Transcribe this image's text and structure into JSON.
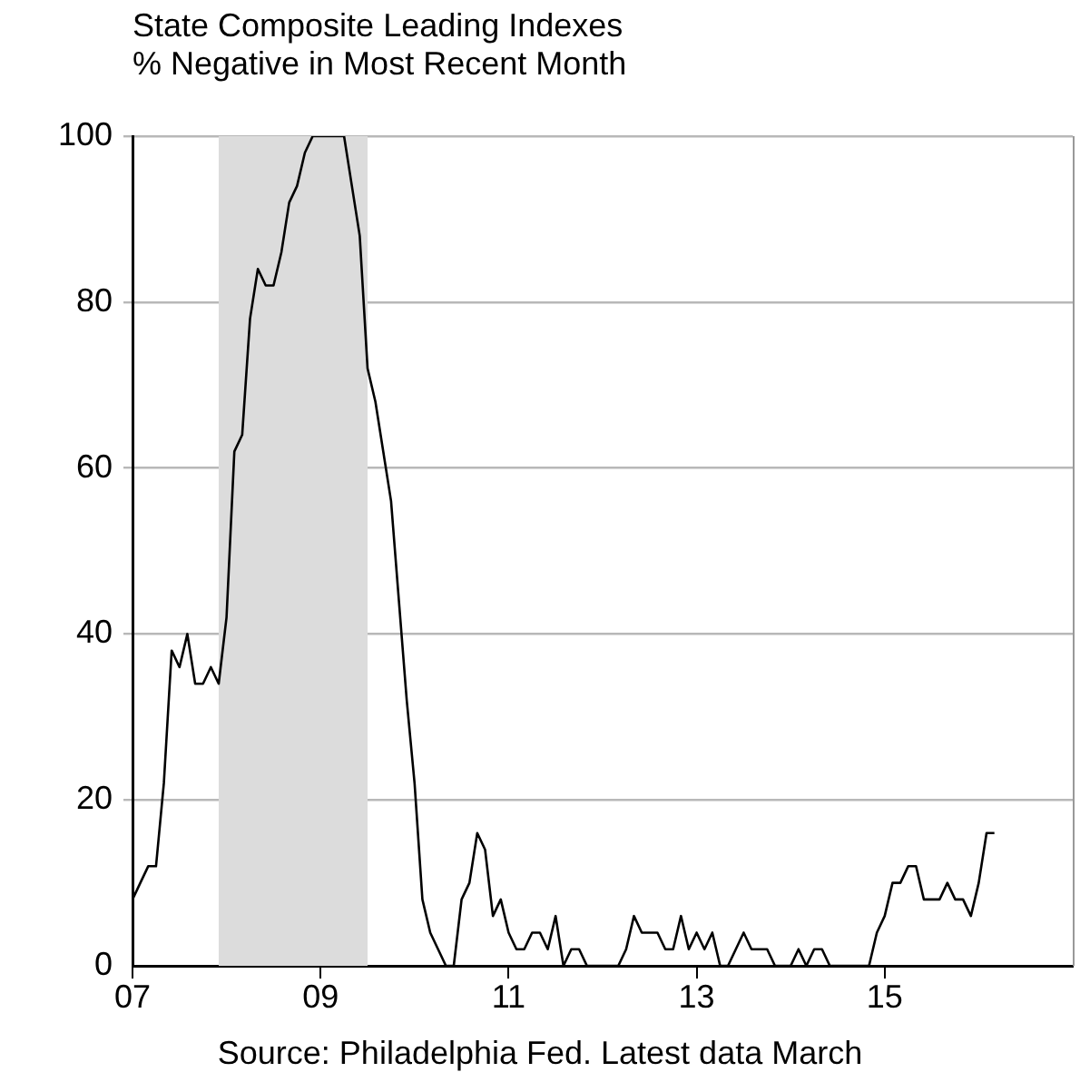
{
  "chart_data": {
    "type": "line",
    "title": "State Composite Leading Indexes",
    "subtitle": "% Negative in Most Recent Month",
    "x": [
      "2007-01",
      "2007-02",
      "2007-03",
      "2007-04",
      "2007-05",
      "2007-06",
      "2007-07",
      "2007-08",
      "2007-09",
      "2007-10",
      "2007-11",
      "2007-12",
      "2008-01",
      "2008-02",
      "2008-03",
      "2008-04",
      "2008-05",
      "2008-06",
      "2008-07",
      "2008-08",
      "2008-09",
      "2008-10",
      "2008-11",
      "2008-12",
      "2009-01",
      "2009-02",
      "2009-03",
      "2009-04",
      "2009-05",
      "2009-06",
      "2009-07",
      "2009-08",
      "2009-09",
      "2009-10",
      "2009-11",
      "2009-12",
      "2010-01",
      "2010-02",
      "2010-03",
      "2010-04",
      "2010-05",
      "2010-06",
      "2010-07",
      "2010-08",
      "2010-09",
      "2010-10",
      "2010-11",
      "2010-12",
      "2011-01",
      "2011-02",
      "2011-03",
      "2011-04",
      "2011-05",
      "2011-06",
      "2011-07",
      "2011-08",
      "2011-09",
      "2011-10",
      "2011-11",
      "2011-12",
      "2012-01",
      "2012-02",
      "2012-03",
      "2012-04",
      "2012-05",
      "2012-06",
      "2012-07",
      "2012-08",
      "2012-09",
      "2012-10",
      "2012-11",
      "2012-12",
      "2013-01",
      "2013-02",
      "2013-03",
      "2013-04",
      "2013-05",
      "2013-06",
      "2013-07",
      "2013-08",
      "2013-09",
      "2013-10",
      "2013-11",
      "2013-12",
      "2014-01",
      "2014-02",
      "2014-03",
      "2014-04",
      "2014-05",
      "2014-06",
      "2014-07",
      "2014-08",
      "2014-09",
      "2014-10",
      "2014-11",
      "2014-12",
      "2015-01",
      "2015-02",
      "2015-03",
      "2015-04",
      "2015-05",
      "2015-06",
      "2015-07",
      "2015-08",
      "2015-09",
      "2015-10",
      "2015-11",
      "2015-12",
      "2016-01",
      "2016-02",
      "2016-03"
    ],
    "values": [
      8,
      10,
      12,
      12,
      22,
      38,
      36,
      40,
      34,
      34,
      36,
      34,
      42,
      62,
      64,
      78,
      84,
      82,
      82,
      86,
      92,
      94,
      98,
      100,
      100,
      100,
      100,
      100,
      94,
      88,
      72,
      68,
      62,
      56,
      44,
      32,
      22,
      8,
      4,
      2,
      0,
      0,
      8,
      10,
      16,
      14,
      6,
      8,
      4,
      2,
      2,
      4,
      4,
      2,
      6,
      0,
      2,
      2,
      0,
      0,
      0,
      0,
      0,
      2,
      6,
      4,
      4,
      4,
      2,
      2,
      6,
      2,
      4,
      2,
      4,
      0,
      0,
      2,
      4,
      2,
      2,
      2,
      0,
      0,
      0,
      2,
      0,
      2,
      2,
      0,
      0,
      0,
      0,
      0,
      0,
      4,
      6,
      10,
      10,
      12,
      12,
      8,
      8,
      8,
      10,
      8,
      8,
      6,
      10,
      16,
      16
    ],
    "color": "#000000",
    "xlim": [
      "2007-01",
      "2017-01"
    ],
    "xticks": [
      {
        "value": "2007",
        "label": "07"
      },
      {
        "value": "2009",
        "label": "09"
      },
      {
        "value": "2011",
        "label": "11"
      },
      {
        "value": "2013",
        "label": "13"
      },
      {
        "value": "2015",
        "label": "15"
      }
    ],
    "ylim": [
      0,
      100
    ],
    "yticks": [
      0,
      20,
      40,
      60,
      80,
      100
    ],
    "grid": "y",
    "bands": [
      {
        "axis": "x",
        "from": "2007-12",
        "to": "2009-07",
        "color": "#dcdcdc"
      }
    ],
    "annotations": [
      "Source: Philadelphia Fed. Latest data March"
    ]
  }
}
